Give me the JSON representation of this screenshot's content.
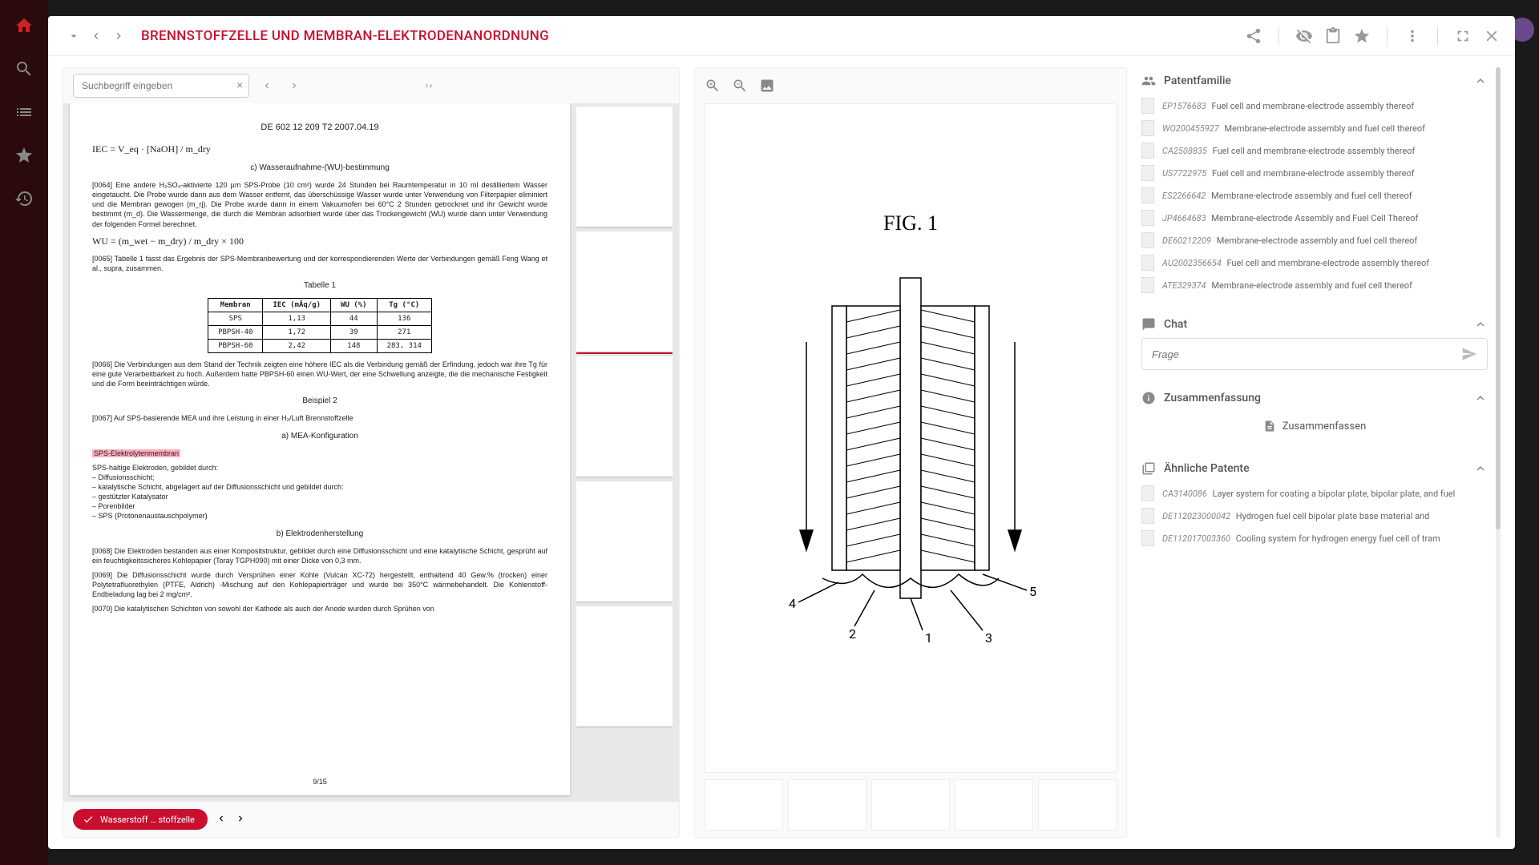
{
  "header": {
    "title": "BRENNSTOFFZELLE UND MEMBRAN-ELEKTRODENANORDNUNG"
  },
  "doc_panel": {
    "search_placeholder": "Suchbegriff eingeben",
    "page": {
      "doc_number": "DE 602 12 209 T2    2007.04.19",
      "formula_iec": "IEC = V_eq · [NaOH] / m_dry",
      "section_c": "c) Wasseraufnahme-(WU)-bestimmung",
      "para_0064": "[0064]  Eine andere H₂SO₄-aktivierte 120 µm SPS-Probe (10 cm²) wurde 24 Stunden bei Raumtemperatur in 10 ml destilliertem Wasser eingetaucht. Die Probe wurde dann aus dem Wasser entfernt, das überschüssige Wasser wurde unter Verwendung von Filterpapier eliminiert und die Membran gewogen (m_rj). Die Probe wurde dann in einem Vakuumofen bei 60°C 2 Stunden getrocknet und ihr Gewicht wurde bestimmt (m_d). Die Wassermenge, die durch die Membran adsorbiert wurde über das Trockengewicht (WU) wurde dann unter Verwendung der folgenden Formel berechnet.",
      "formula_wu": "WU = (m_wet − m_dry) / m_dry × 100",
      "para_0065": "[0065]  Tabelle 1 fasst das Ergebnis der SPS-Membranbewertung und der korrespondierenden Werte der Verbindungen gemäß Feng Wang et al., supra, zusammen.",
      "table_caption": "Tabelle 1",
      "table": {
        "headers": [
          "Membran",
          "IEC (mÄq/g)",
          "WU (%)",
          "Tg (°C)"
        ],
        "rows": [
          [
            "SPS",
            "1,13",
            "44",
            "136"
          ],
          [
            "PBPSH-40",
            "1,72",
            "39",
            "271"
          ],
          [
            "PBPSH-60",
            "2,42",
            "148",
            "283, 314"
          ]
        ]
      },
      "para_0066": "[0066]  Die Verbindungen aus dem Stand der Technik zeigten eine höhere IEC als die Verbindung gemäß der Erfindung, jedoch war ihre Tg für eine gute Verarbeitbarkeit zu hoch. Außerdem hatte PBPSH-60 einen WU-Wert, der eine Schwellung anzeigte, die die mechanische Festigkeit und die Form beeinträchtigen würde.",
      "example_h": "Beispiel 2",
      "para_0067": "[0067]  Auf SPS-basierende MEA und ihre Leistung in einer H₂/Luft Brennstoffzelle",
      "section_a": "a) MEA-Konfiguration",
      "highlighted": "SPS-Elektrolytenmembran",
      "config_lines": "SPS-haltige Elektroden, gebildet durch:\n  – Diffusionsschicht;\n  – katalytische Schicht, abgelagert auf der Diffusionsschicht und gebildet durch:\n  – gestützter Katalysator\n  – Porenbilder\n  – SPS (Protonenaustauschpolymer)",
      "section_b": "b) Elektrodenherstellung",
      "para_0068": "[0068]  Die Elektroden bestanden aus einer Kompositstruktur, gebildet durch eine Diffusionsschicht und eine katalytische Schicht, gesprüht auf ein feuchtigkeitssicheres Kohlepapier (Toray TGPH090) mit einer Dicke von 0,3 mm.",
      "para_0069": "[0069]  Die Diffusionsschicht wurde durch Versprühen einer Kohle (Vulcan XC-72) hergestellt, enthaltend 40 Gew.% (trocken) einer Polytetrafluorethylen (PTFE, Aldrich) -Mischung auf den Kohlepapierträger und wurde bei 350°C wärmebehandelt. Die Kohlenstoff-Endbeladung lag bei 2 mg/cm².",
      "para_0070": "[0070]  Die katalytischen Schichten von sowohl der Kathode als auch der Anode wurden durch Sprühen von",
      "page_num": "9/15"
    },
    "chip_text": "Wasserstoff … stoffzelle"
  },
  "fig_panel": {
    "fig_title": "FIG. 1",
    "labels": [
      "1",
      "2",
      "3",
      "4",
      "5"
    ]
  },
  "side_panel": {
    "family": {
      "title": "Patentfamilie",
      "items": [
        {
          "id": "EP1576683",
          "title": "Fuel cell and membrane-electrode assembly thereof"
        },
        {
          "id": "WO200455927",
          "title": "Membrane-electrode assembly and fuel cell thereof"
        },
        {
          "id": "CA2508835",
          "title": "Fuel cell and membrane-electrode assembly thereof"
        },
        {
          "id": "US7722975",
          "title": "Fuel cell and membrane-electrode assembly thereof"
        },
        {
          "id": "ES2266642",
          "title": "Membrane-electrode assembly and fuel cell thereof"
        },
        {
          "id": "JP4664683",
          "title": "Membrane-electrode Assembly and Fuel Cell Thereof"
        },
        {
          "id": "DE60212209",
          "title": "Membrane-electrode assembly and fuel cell thereof"
        },
        {
          "id": "AU2002356654",
          "title": "Fuel cell and membrane-electrode assembly thereof"
        },
        {
          "id": "ATE329374",
          "title": "Membrane-electrode assembly and fuel cell thereof"
        }
      ]
    },
    "chat": {
      "title": "Chat",
      "placeholder": "Frage"
    },
    "summary": {
      "title": "Zusammenfassung",
      "button": "Zusammenfassen"
    },
    "similar": {
      "title": "Ähnliche Patente",
      "items": [
        {
          "id": "CA3140086",
          "title": "Layer system for coating a bipolar plate, bipolar plate, and fuel"
        },
        {
          "id": "DE112023000042",
          "title": "Hydrogen fuel cell bipolar plate base material and"
        },
        {
          "id": "DE112017003360",
          "title": "Cooling system for hydrogen energy fuel cell of tram"
        }
      ]
    }
  }
}
